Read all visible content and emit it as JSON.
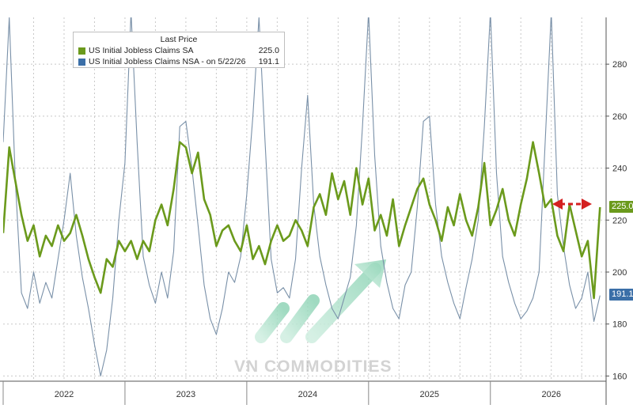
{
  "colors": {
    "sa_series": "#6b9a1c",
    "nsa_series": "#7990a8",
    "badge_sa": "#6b9a1c",
    "badge_nsa": "#3b6fa8",
    "arrow": "#d42020",
    "watermark_icon": "#9fd9c0",
    "grid": "#c8c8c8"
  },
  "legend": {
    "title": "Last Price",
    "items": [
      {
        "name": "US Initial Jobless Claims SA",
        "value": "225.0",
        "color": "#6b9a1c"
      },
      {
        "name": "US Initial Jobless Claims NSA -   on 5/22/26",
        "value": "191.1",
        "color": "#3b6fa8"
      }
    ]
  },
  "watermark": {
    "text": "VN COMMODITIES",
    "icon": "growth-arrow-icon"
  },
  "badges": {
    "sa_value": "225.0",
    "nsa_value": "191.1"
  },
  "chart_data": {
    "type": "line",
    "title": "",
    "xlabel": "",
    "ylabel": "",
    "y_axis_side": "right",
    "grid": true,
    "legend_position": "top-left",
    "ylim": [
      158,
      298
    ],
    "xlim": [
      2021.5,
      2026.45
    ],
    "y_ticks": [
      160,
      180,
      200,
      220,
      240,
      260,
      280
    ],
    "x_tick_labels": [
      "2022",
      "2023",
      "2024",
      "2025",
      "2026"
    ],
    "x_tick_positions": [
      2022.0,
      2023.0,
      2024.0,
      2025.0,
      2026.0
    ],
    "series": [
      {
        "name": "US Initial Jobless Claims SA",
        "last_value": 225.0,
        "x": [
          2021.5,
          2021.55,
          2021.6,
          2021.65,
          2021.7,
          2021.75,
          2021.8,
          2021.85,
          2021.9,
          2021.95,
          2022.0,
          2022.05,
          2022.1,
          2022.15,
          2022.2,
          2022.25,
          2022.3,
          2022.35,
          2022.4,
          2022.45,
          2022.5,
          2022.55,
          2022.6,
          2022.65,
          2022.7,
          2022.75,
          2022.8,
          2022.85,
          2022.9,
          2022.95,
          2023.0,
          2023.05,
          2023.1,
          2023.15,
          2023.2,
          2023.25,
          2023.3,
          2023.35,
          2023.4,
          2023.45,
          2023.5,
          2023.55,
          2023.6,
          2023.65,
          2023.7,
          2023.75,
          2023.8,
          2023.85,
          2023.9,
          2023.95,
          2024.0,
          2024.05,
          2024.1,
          2024.15,
          2024.2,
          2024.25,
          2024.3,
          2024.35,
          2024.4,
          2024.45,
          2024.5,
          2024.55,
          2024.6,
          2024.65,
          2024.7,
          2024.75,
          2024.8,
          2024.85,
          2024.9,
          2024.95,
          2025.0,
          2025.05,
          2025.1,
          2025.15,
          2025.2,
          2025.25,
          2025.3,
          2025.35,
          2025.4,
          2025.45,
          2025.5,
          2025.55,
          2025.6,
          2025.65,
          2025.7,
          2025.75,
          2025.8,
          2025.85,
          2025.9,
          2025.95,
          2026.0,
          2026.05,
          2026.1,
          2026.15,
          2026.2,
          2026.25,
          2026.3,
          2026.35,
          2026.4
        ],
        "values": [
          215,
          248,
          235,
          222,
          212,
          218,
          206,
          214,
          210,
          218,
          212,
          215,
          222,
          214,
          205,
          198,
          192,
          205,
          202,
          212,
          208,
          212,
          205,
          212,
          208,
          220,
          226,
          218,
          232,
          250,
          248,
          238,
          246,
          228,
          222,
          210,
          216,
          218,
          212,
          208,
          218,
          205,
          210,
          203,
          212,
          218,
          212,
          214,
          220,
          216,
          210,
          225,
          230,
          222,
          238,
          228,
          235,
          222,
          240,
          226,
          236,
          216,
          222,
          214,
          228,
          210,
          218,
          225,
          232,
          236,
          226,
          220,
          212,
          225,
          218,
          230,
          220,
          214,
          225,
          242,
          218,
          224,
          232,
          220,
          214,
          226,
          236,
          250,
          238,
          225,
          228,
          214,
          208,
          226,
          216,
          206,
          212,
          190,
          225
        ]
      },
      {
        "name": "US Initial Jobless Claims NSA",
        "last_value": 191.1,
        "x": [
          2021.5,
          2021.55,
          2021.6,
          2021.65,
          2021.7,
          2021.75,
          2021.8,
          2021.85,
          2021.9,
          2021.95,
          2022.0,
          2022.05,
          2022.1,
          2022.15,
          2022.2,
          2022.25,
          2022.3,
          2022.35,
          2022.4,
          2022.45,
          2022.5,
          2022.55,
          2022.6,
          2022.65,
          2022.7,
          2022.75,
          2022.8,
          2022.85,
          2022.9,
          2022.95,
          2023.0,
          2023.05,
          2023.1,
          2023.15,
          2023.2,
          2023.25,
          2023.3,
          2023.35,
          2023.4,
          2023.45,
          2023.5,
          2023.55,
          2023.6,
          2023.65,
          2023.7,
          2023.75,
          2023.8,
          2023.85,
          2023.9,
          2023.95,
          2024.0,
          2024.05,
          2024.1,
          2024.15,
          2024.2,
          2024.25,
          2024.3,
          2024.35,
          2024.4,
          2024.45,
          2024.5,
          2024.55,
          2024.6,
          2024.65,
          2024.7,
          2024.75,
          2024.8,
          2024.85,
          2024.9,
          2024.95,
          2025.0,
          2025.05,
          2025.1,
          2025.15,
          2025.2,
          2025.25,
          2025.3,
          2025.35,
          2025.4,
          2025.45,
          2025.5,
          2025.55,
          2025.6,
          2025.65,
          2025.7,
          2025.75,
          2025.8,
          2025.85,
          2025.9,
          2025.95,
          2026.0,
          2026.05,
          2026.1,
          2026.15,
          2026.2,
          2026.25,
          2026.3,
          2026.35,
          2026.4
        ],
        "values": [
          250,
          298,
          235,
          192,
          186,
          200,
          188,
          196,
          190,
          205,
          220,
          238,
          214,
          198,
          186,
          172,
          160,
          170,
          190,
          220,
          242,
          300,
          250,
          206,
          195,
          188,
          200,
          190,
          208,
          256,
          258,
          240,
          218,
          195,
          182,
          176,
          186,
          200,
          196,
          206,
          230,
          260,
          298,
          250,
          205,
          192,
          194,
          190,
          205,
          240,
          268,
          226,
          206,
          195,
          186,
          182,
          190,
          198,
          218,
          256,
          300,
          245,
          210,
          196,
          186,
          182,
          195,
          200,
          225,
          258,
          260,
          226,
          206,
          196,
          188,
          182,
          194,
          205,
          220,
          256,
          300,
          238,
          206,
          196,
          188,
          182,
          185,
          190,
          200,
          250,
          300,
          230,
          210,
          195,
          186,
          190,
          200,
          181,
          191
        ]
      }
    ]
  }
}
